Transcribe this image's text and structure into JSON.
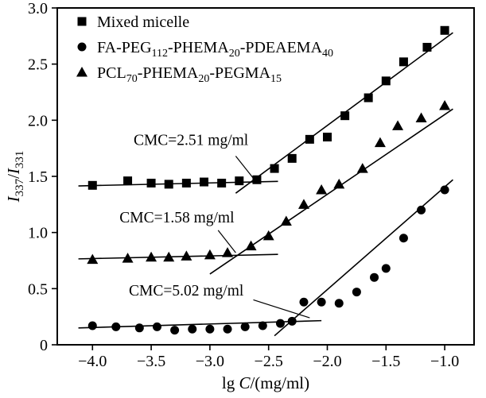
{
  "figure": {
    "background": "#ffffff",
    "ink_color": "#000000"
  },
  "chart_data": {
    "type": "scatter",
    "title": "",
    "xlabel": "lg C/(mg/ml)",
    "xlabel_parts": [
      {
        "t": "lg "
      },
      {
        "t": "C",
        "italic": true
      },
      {
        "t": "/(mg/ml)"
      }
    ],
    "ylabel": "I337/I331",
    "ylabel_parts": [
      {
        "t": "I",
        "italic": true
      },
      {
        "t": "337",
        "sub": true
      },
      {
        "t": "/"
      },
      {
        "t": "I",
        "italic": true
      },
      {
        "t": "331",
        "sub": true
      }
    ],
    "xlim": [
      -4.3,
      -0.75
    ],
    "ylim": [
      0,
      3.0
    ],
    "grid": false,
    "xticks": [
      {
        "v": -4.0,
        "label": "−4.0"
      },
      {
        "v": -3.5,
        "label": "−3.5"
      },
      {
        "v": -3.0,
        "label": "−3.0"
      },
      {
        "v": -2.5,
        "label": "−2.5"
      },
      {
        "v": -2.0,
        "label": "−2.0"
      },
      {
        "v": -1.5,
        "label": "−1.5"
      },
      {
        "v": -1.0,
        "label": "−1.0"
      }
    ],
    "yticks": [
      {
        "v": 0,
        "label": "0"
      },
      {
        "v": 0.5,
        "label": "0.5"
      },
      {
        "v": 1.0,
        "label": "1.0"
      },
      {
        "v": 1.5,
        "label": "1.5"
      },
      {
        "v": 2.0,
        "label": "2.0"
      },
      {
        "v": 2.5,
        "label": "2.5"
      },
      {
        "v": 3.0,
        "label": "3.0"
      }
    ],
    "legend": {
      "position": "top-left",
      "entries": [
        {
          "marker": "square",
          "label": "Mixed micelle",
          "label_parts": [
            {
              "t": "Mixed micelle"
            }
          ]
        },
        {
          "marker": "circle",
          "label": "FA-PEG112-PHEMA20-PDEAEMA40",
          "label_parts": [
            {
              "t": "FA-PEG"
            },
            {
              "t": "112",
              "sub": true
            },
            {
              "t": "-PHEMA"
            },
            {
              "t": "20",
              "sub": true
            },
            {
              "t": "-PDEAEMA"
            },
            {
              "t": "40",
              "sub": true
            }
          ]
        },
        {
          "marker": "triangle",
          "label": "PCL70-PHEMA20-PEGMA15",
          "label_parts": [
            {
              "t": "PCL"
            },
            {
              "t": "70",
              "sub": true
            },
            {
              "t": "-PHEMA"
            },
            {
              "t": "20",
              "sub": true
            },
            {
              "t": "-PEGMA"
            },
            {
              "t": "15",
              "sub": true
            }
          ]
        }
      ]
    },
    "series": [
      {
        "name": "Mixed micelle",
        "slug": "mixed-micelle",
        "marker": "square",
        "color": "#000000",
        "cmc": "2.51 mg/ml",
        "points": [
          [
            -4.0,
            1.42
          ],
          [
            -3.7,
            1.46
          ],
          [
            -3.5,
            1.44
          ],
          [
            -3.35,
            1.43
          ],
          [
            -3.2,
            1.44
          ],
          [
            -3.05,
            1.45
          ],
          [
            -2.9,
            1.44
          ],
          [
            -2.75,
            1.46
          ],
          [
            -2.6,
            1.47
          ],
          [
            -2.45,
            1.57
          ],
          [
            -2.3,
            1.66
          ],
          [
            -2.15,
            1.83
          ],
          [
            -2.0,
            1.85
          ],
          [
            -1.85,
            2.04
          ],
          [
            -1.65,
            2.2
          ],
          [
            -1.5,
            2.35
          ],
          [
            -1.35,
            2.52
          ],
          [
            -1.15,
            2.65
          ],
          [
            -1.0,
            2.8
          ]
        ],
        "fit_flat": [
          -4.12,
          1.415,
          -2.42,
          1.455
        ],
        "fit_rise": [
          -2.78,
          1.35,
          -0.93,
          2.78
        ]
      },
      {
        "name": "FA-PEG112-PHEMA20-PDEAEMA40",
        "slug": "fa-peg-phema-pdeaema",
        "marker": "circle",
        "color": "#000000",
        "cmc": "5.02 mg/ml",
        "points": [
          [
            -4.0,
            0.17
          ],
          [
            -3.8,
            0.16
          ],
          [
            -3.6,
            0.15
          ],
          [
            -3.45,
            0.16
          ],
          [
            -3.3,
            0.13
          ],
          [
            -3.15,
            0.14
          ],
          [
            -3.0,
            0.14
          ],
          [
            -2.85,
            0.14
          ],
          [
            -2.7,
            0.16
          ],
          [
            -2.55,
            0.17
          ],
          [
            -2.4,
            0.19
          ],
          [
            -2.3,
            0.21
          ],
          [
            -2.2,
            0.38
          ],
          [
            -2.05,
            0.38
          ],
          [
            -1.9,
            0.37
          ],
          [
            -1.75,
            0.47
          ],
          [
            -1.6,
            0.6
          ],
          [
            -1.5,
            0.68
          ],
          [
            -1.35,
            0.95
          ],
          [
            -1.2,
            1.2
          ],
          [
            -1.0,
            1.38
          ]
        ],
        "fit_flat": [
          -4.12,
          0.15,
          -2.05,
          0.215
        ],
        "fit_rise": [
          -2.45,
          0.08,
          -0.93,
          1.47
        ]
      },
      {
        "name": "PCL70-PHEMA20-PEGMA15",
        "slug": "pcl-phema-pegma",
        "marker": "triangle",
        "color": "#000000",
        "cmc": "1.58 mg/ml",
        "points": [
          [
            -4.0,
            0.76
          ],
          [
            -3.7,
            0.77
          ],
          [
            -3.5,
            0.78
          ],
          [
            -3.35,
            0.78
          ],
          [
            -3.2,
            0.79
          ],
          [
            -3.0,
            0.8
          ],
          [
            -2.85,
            0.82
          ],
          [
            -2.65,
            0.88
          ],
          [
            -2.5,
            0.97
          ],
          [
            -2.35,
            1.1
          ],
          [
            -2.2,
            1.25
          ],
          [
            -2.05,
            1.38
          ],
          [
            -1.9,
            1.43
          ],
          [
            -1.7,
            1.57
          ],
          [
            -1.55,
            1.8
          ],
          [
            -1.4,
            1.95
          ],
          [
            -1.2,
            2.02
          ],
          [
            -1.0,
            2.13
          ]
        ],
        "fit_flat": [
          -4.12,
          0.765,
          -2.42,
          0.805
        ],
        "fit_rise": [
          -3.0,
          0.63,
          -0.93,
          2.1
        ]
      }
    ],
    "annotations": [
      {
        "text": "CMC=2.51 mg/ml",
        "text_x": -3.65,
        "text_y": 1.78,
        "line": [
          -2.78,
          1.68,
          -2.62,
          1.47
        ]
      },
      {
        "text": "CMC=1.58 mg/ml",
        "text_x": -3.77,
        "text_y": 1.09,
        "line": [
          -2.93,
          1.02,
          -2.78,
          0.82
        ]
      },
      {
        "text": "CMC=5.02 mg/ml",
        "text_x": -3.69,
        "text_y": 0.44,
        "line": [
          -2.63,
          0.4,
          -2.15,
          0.24
        ]
      }
    ]
  }
}
